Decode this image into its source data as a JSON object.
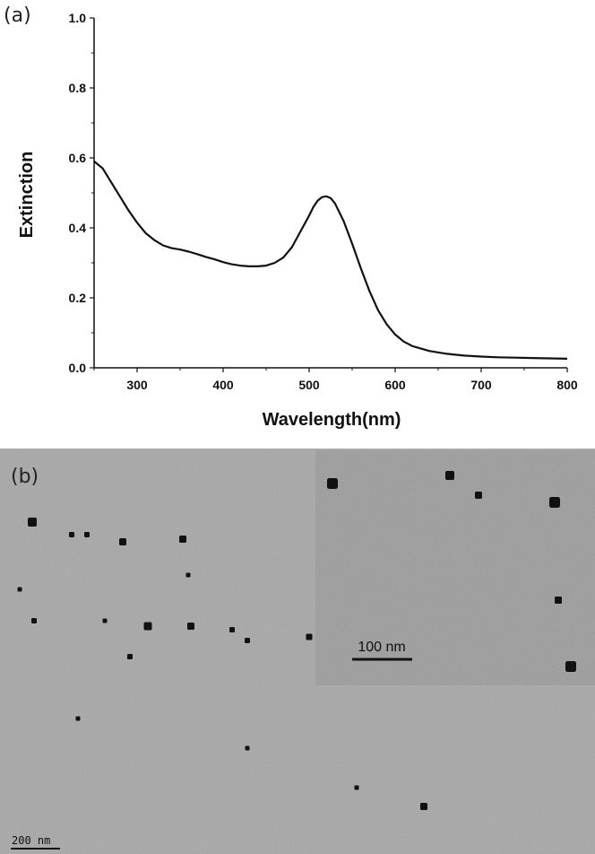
{
  "panel_a": {
    "label": "(a)"
  },
  "panel_b": {
    "label": "(b)",
    "scale_bar_label": "200 nm",
    "inset_scale_bar_label": "100 nm",
    "background_color": "#a7a7a7",
    "inset_background_color": "#9c9c9c",
    "particle_color": "#111111"
  },
  "chart_data": {
    "type": "line",
    "title": "",
    "xlabel": "Wavelength(nm)",
    "ylabel": "Extinction",
    "xlim": [
      250,
      800
    ],
    "ylim": [
      0.0,
      1.0
    ],
    "x_ticks": [
      "300",
      "400",
      "500",
      "600",
      "700",
      "800"
    ],
    "y_ticks": [
      "0.0",
      "0.2",
      "0.4",
      "0.6",
      "0.8",
      "1.0"
    ],
    "grid": false,
    "line_color": "#111111",
    "series": [
      {
        "x": [
          250,
          260,
          270,
          280,
          290,
          300,
          310,
          320,
          330,
          340,
          350,
          360,
          370,
          380,
          390,
          400,
          410,
          420,
          430,
          440,
          450,
          460,
          470,
          480,
          490,
          500,
          505,
          510,
          515,
          520,
          525,
          530,
          540,
          550,
          560,
          570,
          580,
          590,
          600,
          610,
          620,
          640,
          660,
          680,
          700,
          720,
          740,
          760,
          780,
          800
        ],
        "y": [
          0.59,
          0.57,
          0.53,
          0.49,
          0.45,
          0.415,
          0.385,
          0.365,
          0.35,
          0.342,
          0.338,
          0.332,
          0.325,
          0.317,
          0.31,
          0.302,
          0.296,
          0.292,
          0.29,
          0.29,
          0.292,
          0.3,
          0.315,
          0.345,
          0.39,
          0.435,
          0.46,
          0.478,
          0.488,
          0.49,
          0.485,
          0.47,
          0.42,
          0.355,
          0.285,
          0.22,
          0.165,
          0.125,
          0.095,
          0.075,
          0.062,
          0.048,
          0.04,
          0.035,
          0.032,
          0.03,
          0.029,
          0.028,
          0.027,
          0.026
        ]
      }
    ]
  }
}
